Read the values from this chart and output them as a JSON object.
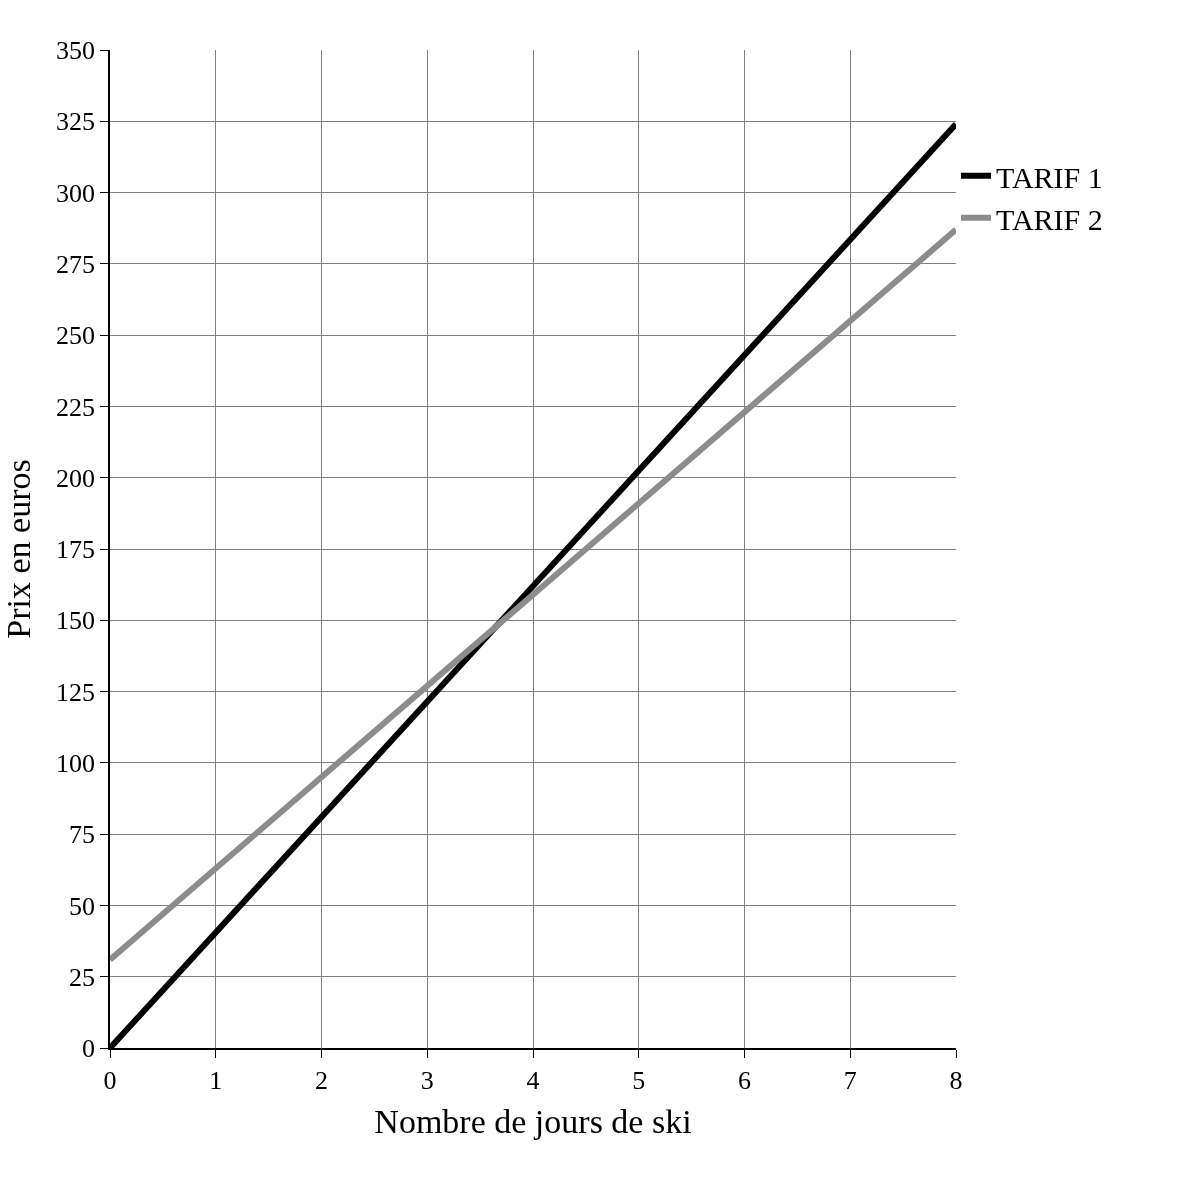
{
  "chart_data": {
    "type": "line",
    "xlabel": "Nombre de jours de ski",
    "ylabel": "Prix en euros",
    "x": [
      0,
      8
    ],
    "series": [
      {
        "name": "TARIF 1",
        "color": "#000000",
        "values": [
          0,
          324
        ]
      },
      {
        "name": "TARIF 2",
        "color": "#8c8c8c",
        "values": [
          31,
          287
        ]
      }
    ],
    "xlim": [
      0,
      8
    ],
    "xticks": [
      0,
      1,
      2,
      3,
      4,
      5,
      6,
      7,
      8
    ],
    "ylim": [
      0,
      350
    ],
    "yticks": [
      0,
      25,
      50,
      75,
      100,
      125,
      150,
      175,
      200,
      225,
      250,
      275,
      300,
      325,
      350
    ],
    "grid": true,
    "legend": "right",
    "marker": "none",
    "line_style": "solid"
  }
}
